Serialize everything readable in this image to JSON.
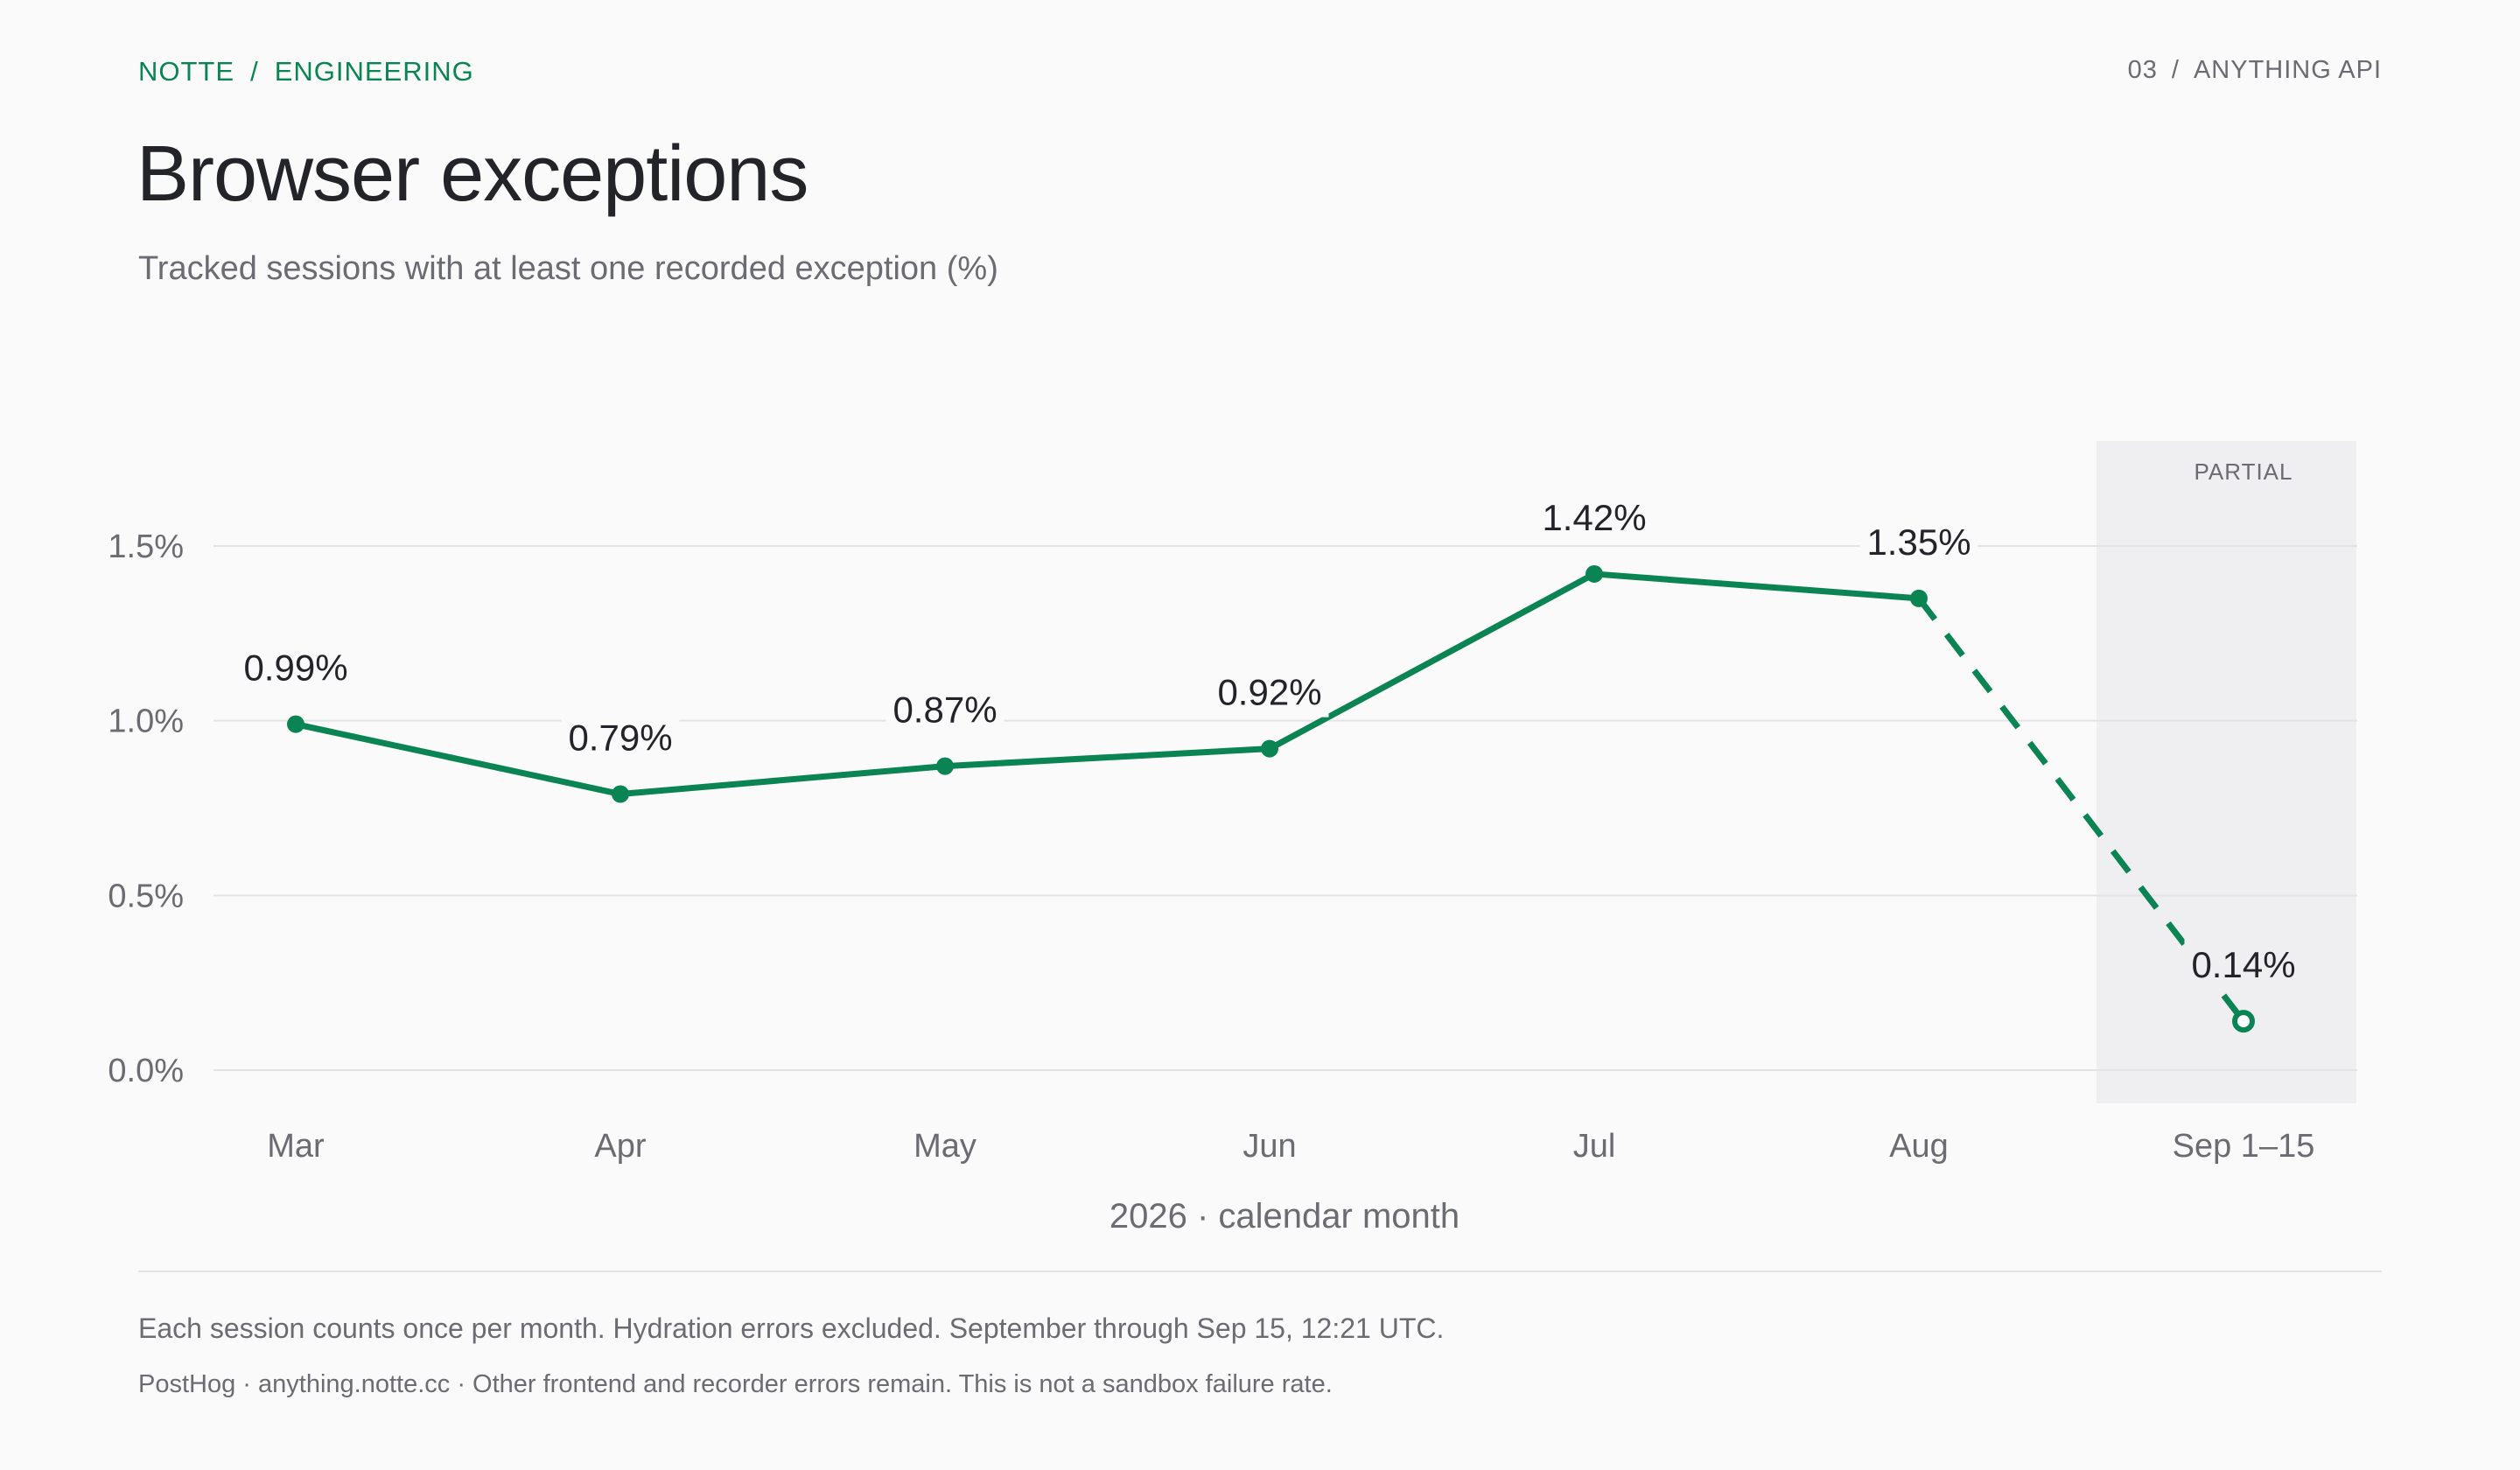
{
  "header": {
    "breadcrumb": [
      "NOTTE",
      "ENGINEERING"
    ],
    "breadcrumb_sep": "/",
    "page_number": "03",
    "section": "ANYTHING API"
  },
  "title": "Browser exceptions",
  "subtitle": "Tracked sessions with at least one recorded exception (%)",
  "chart_data": {
    "type": "line",
    "categories": [
      "Mar",
      "Apr",
      "May",
      "Jun",
      "Jul",
      "Aug",
      "Sep 1–15"
    ],
    "values": [
      0.99,
      0.79,
      0.87,
      0.92,
      1.42,
      1.35,
      0.14
    ],
    "data_labels": [
      "0.99%",
      "0.79%",
      "0.87%",
      "0.92%",
      "1.42%",
      "1.35%",
      "0.14%"
    ],
    "partial_index": 6,
    "partial_label": "PARTIAL",
    "xlabel": "2026 · calendar month",
    "ylabel": "",
    "ylim": [
      0,
      1.5
    ],
    "yticks": [
      0,
      0.5,
      1.0,
      1.5
    ],
    "ytick_labels": [
      "0.0%",
      "0.5%",
      "1.0%",
      "1.5%"
    ],
    "grid": true,
    "line_color": "#0b8454",
    "partial_band_color": "#efeff1"
  },
  "footer": {
    "note": "Each session counts once per month. Hydration errors excluded. September through Sep 15, 12:21 UTC.",
    "source": "PostHog · anything.notte.cc · Other frontend and recorder errors remain. This is not a sandbox failure rate."
  }
}
